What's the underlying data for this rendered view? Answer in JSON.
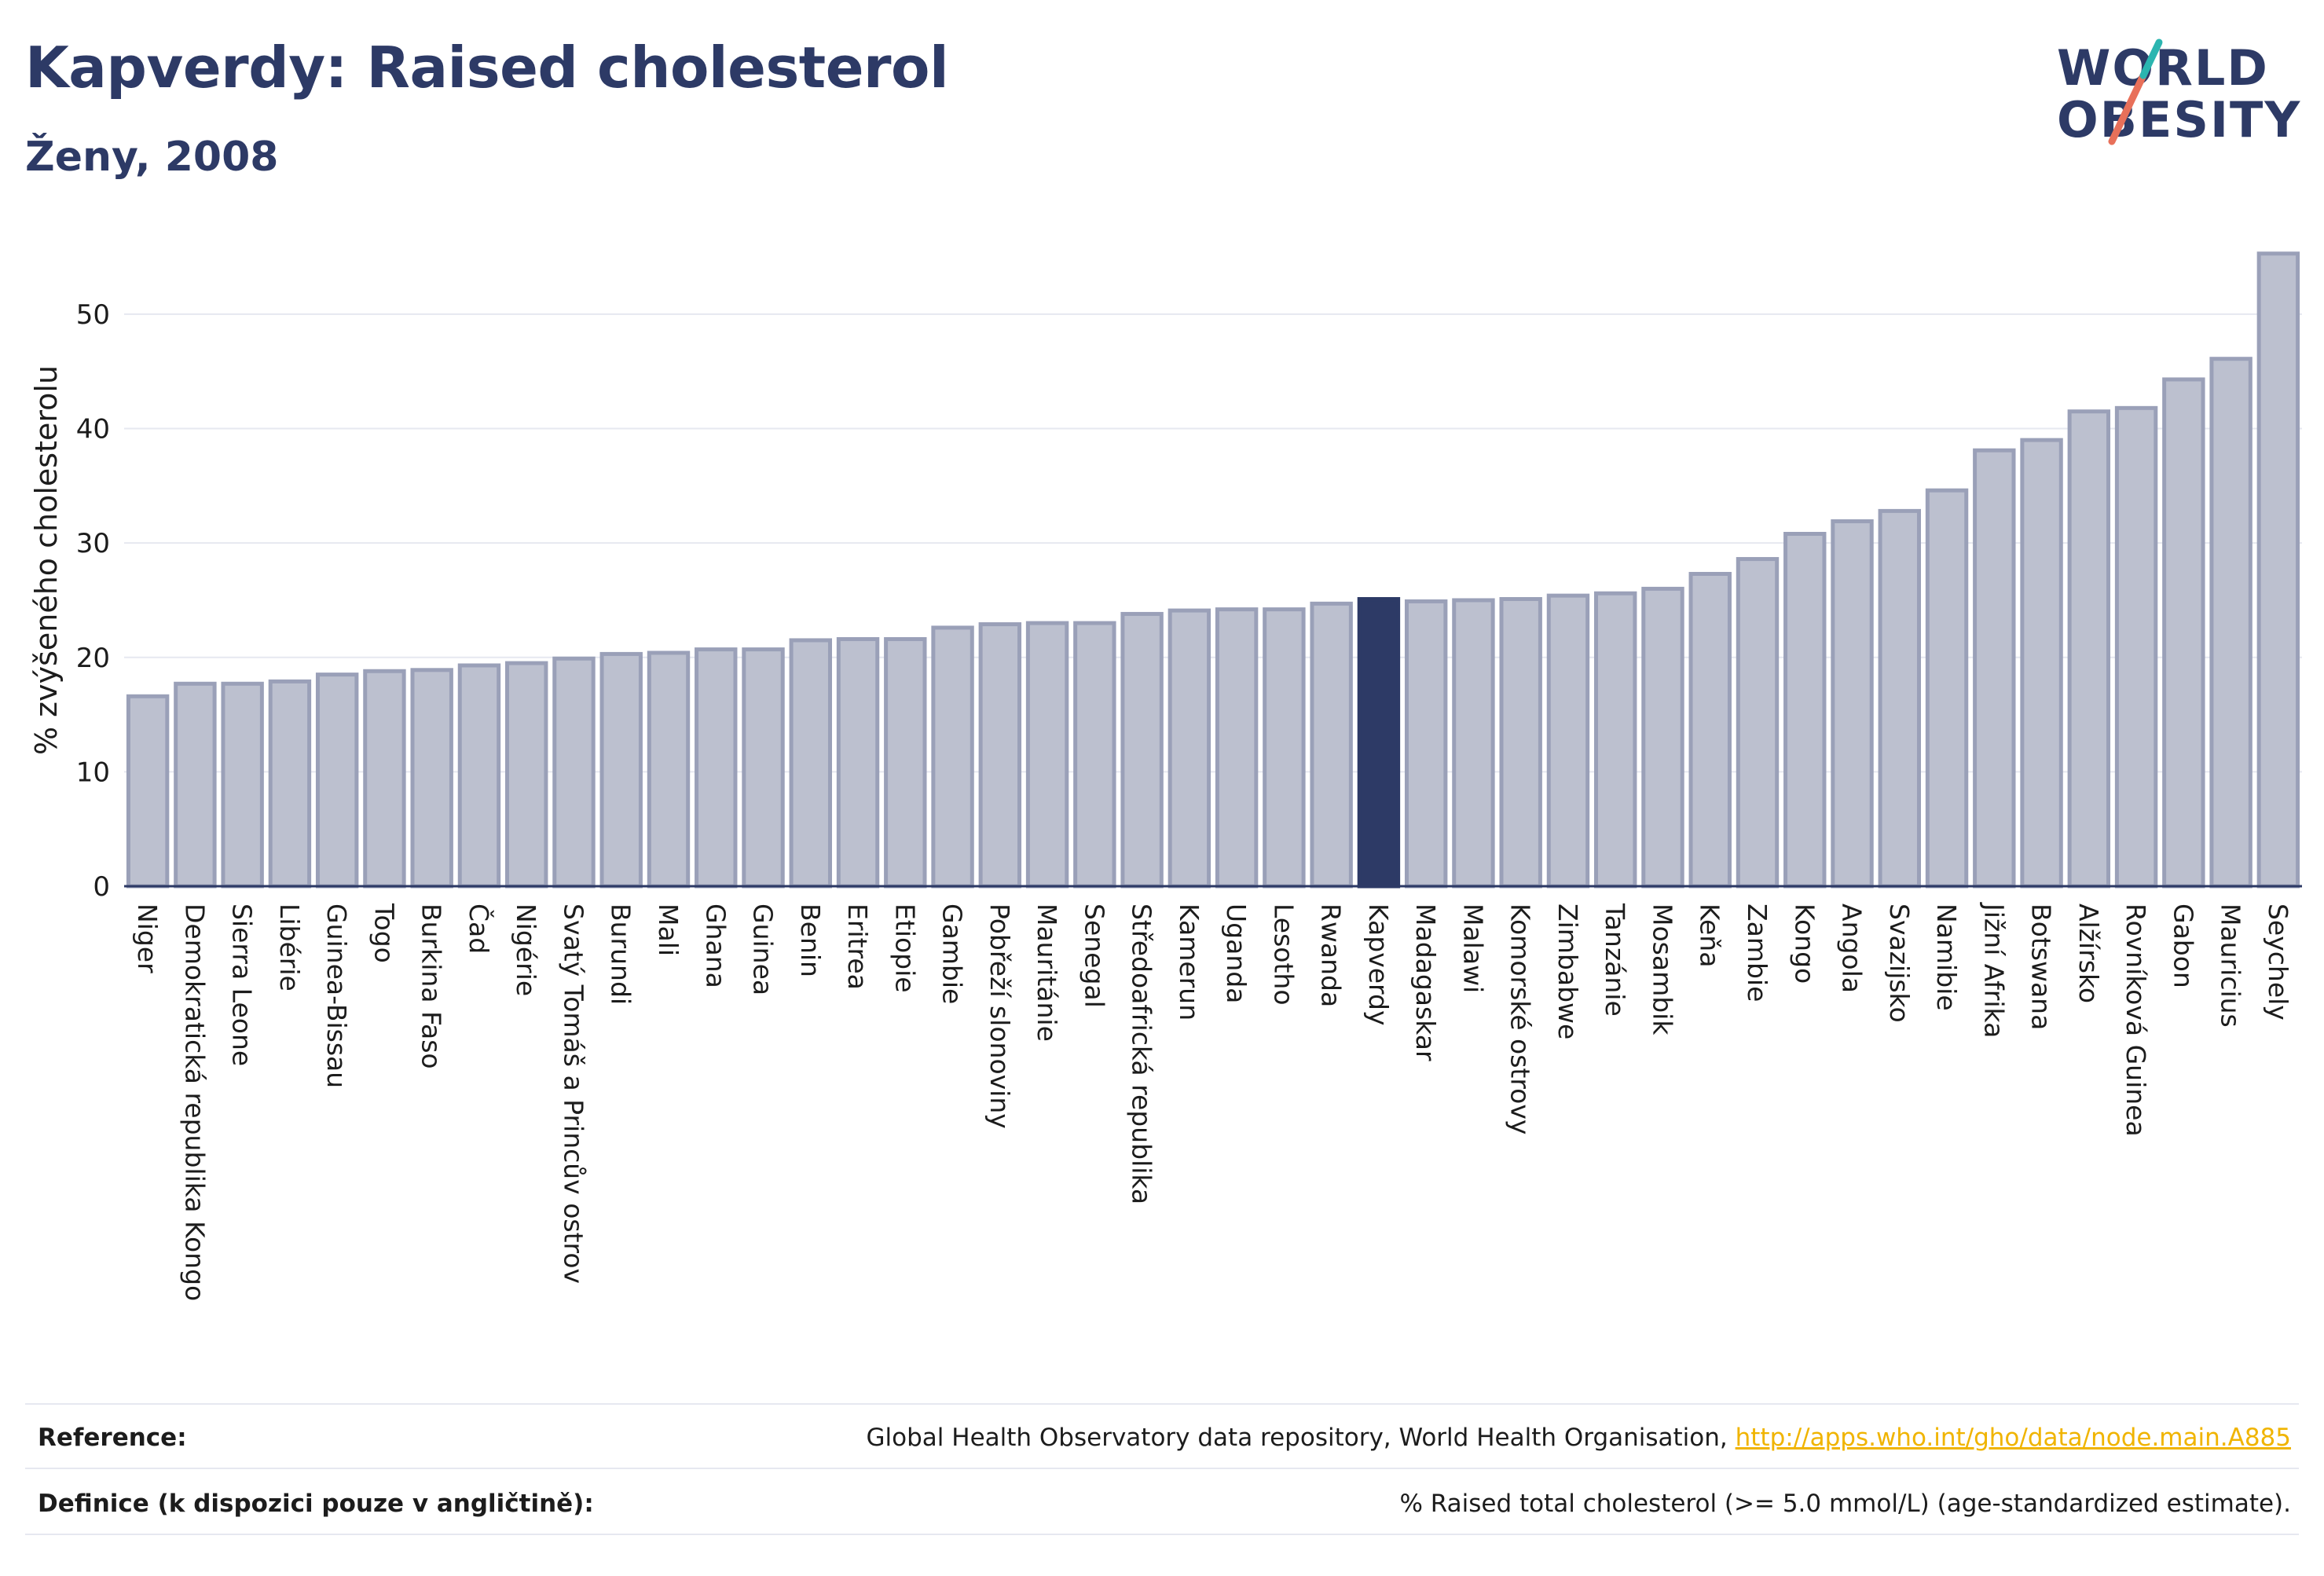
{
  "header": {
    "title": "Kapverdy: Raised cholesterol",
    "subtitle": "Ženy, 2008"
  },
  "logo": {
    "line1": "WORLD",
    "line2": "OBESITY"
  },
  "colors": {
    "bar": "#bcc0cf",
    "bar_border": "#9aa0b8",
    "highlight": "#2d3a66",
    "grid": "#e6e8f0",
    "title": "#2d3a66",
    "link": "#f0b400",
    "logo_teal": "#2bb5b0",
    "logo_coral": "#e8705a"
  },
  "chart_data": {
    "type": "bar",
    "ylabel": "% zvýšeného cholesterolu",
    "xlabel": "",
    "ylim": [
      0,
      57
    ],
    "yticks": [
      0,
      10,
      20,
      30,
      40,
      50
    ],
    "grid": true,
    "highlight": "Kapverdy",
    "categories": [
      "Niger",
      "Demokratická republika Kongo",
      "Sierra Leone",
      "Libérie",
      "Guinea-Bissau",
      "Togo",
      "Burkina Faso",
      "Čad",
      "Nigérie",
      "Svatý Tomáš a Princův ostrov",
      "Burundi",
      "Mali",
      "Ghana",
      "Guinea",
      "Benin",
      "Eritrea",
      "Etiopie",
      "Gambie",
      "Pobřeží slonoviny",
      "Mauritánie",
      "Senegal",
      "Středoafrická republika",
      "Kamerun",
      "Uganda",
      "Lesotho",
      "Rwanda",
      "Kapverdy",
      "Madagaskar",
      "Malawi",
      "Komorské ostrovy",
      "Zimbabwe",
      "Tanzánie",
      "Mosambik",
      "Keňa",
      "Zambie",
      "Kongo",
      "Angola",
      "Svazijsko",
      "Namibie",
      "Jižní Afrika",
      "Botswana",
      "Alžírsko",
      "Rovníková Guinea",
      "Gabon",
      "Mauricius",
      "Seychely"
    ],
    "values": [
      16.6,
      17.7,
      17.7,
      17.9,
      18.5,
      18.8,
      18.9,
      19.3,
      19.5,
      19.9,
      20.3,
      20.4,
      20.7,
      20.7,
      21.5,
      21.6,
      21.6,
      22.6,
      22.9,
      23.0,
      23.0,
      23.8,
      24.1,
      24.2,
      24.2,
      24.7,
      25.1,
      24.9,
      25.0,
      25.1,
      25.4,
      25.6,
      26.0,
      27.3,
      28.6,
      30.8,
      31.9,
      32.8,
      34.6,
      38.1,
      39.0,
      41.5,
      41.8,
      44.3,
      46.1,
      55.3
    ]
  },
  "footer": {
    "reference_label": "Reference:",
    "reference_text": "Global Health Observatory data repository, World Health Organisation, ",
    "reference_link": "http://apps.who.int/gho/data/node.main.A885",
    "definition_label": "Definice (k dispozici pouze v angličtině):",
    "definition_text": "% Raised total cholesterol (>= 5.0 mmol/L) (age-standardized estimate)."
  }
}
